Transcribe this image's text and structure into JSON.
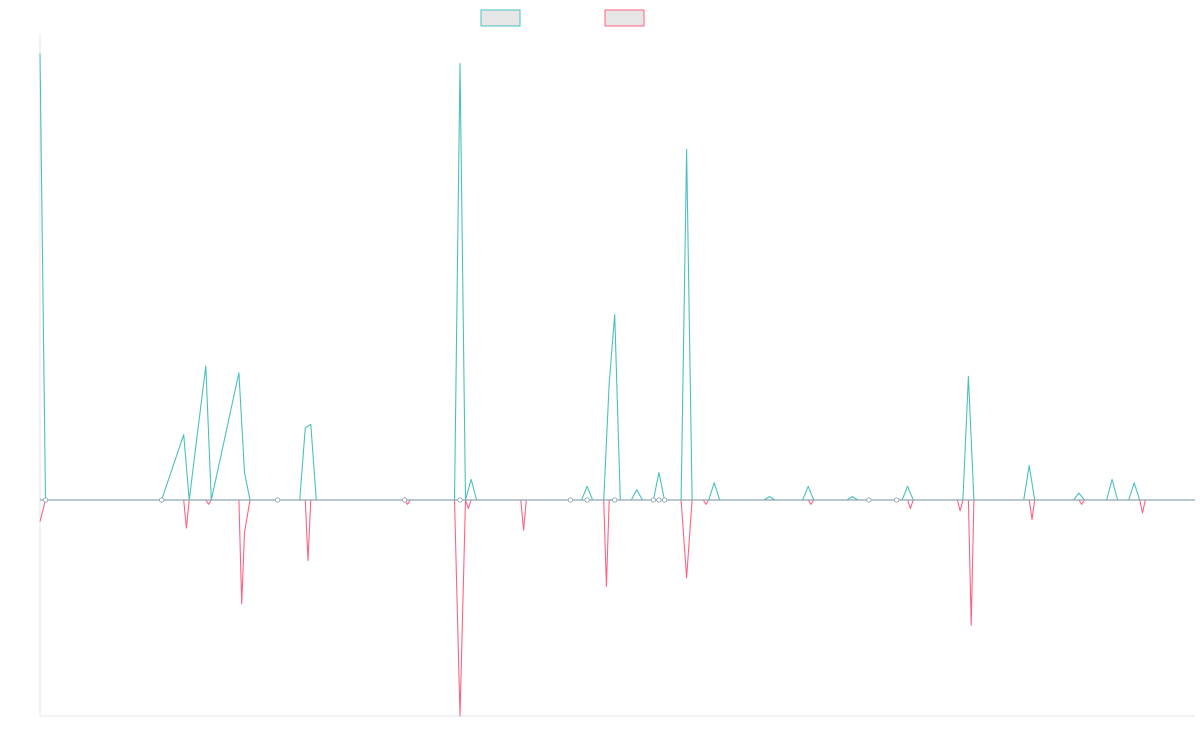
{
  "chart_data": {
    "type": "line",
    "title": "",
    "xlabel": "",
    "ylabel": "",
    "grid": false,
    "legend": "top-center",
    "x_count": 210,
    "ylim": [
      -1,
      1.35
    ],
    "series": [
      {
        "color": "#4bc0c0",
        "fill": "#e6e6e6",
        "points": [
          [
            0,
            1.3
          ],
          [
            1,
            0
          ],
          [
            22,
            0
          ],
          [
            26,
            0.19
          ],
          [
            27,
            0
          ],
          [
            30,
            0.39
          ],
          [
            31,
            0
          ],
          [
            36,
            0.37
          ],
          [
            37,
            0.08
          ],
          [
            38,
            0
          ],
          [
            47,
            0
          ],
          [
            48,
            0.21
          ],
          [
            49,
            0.22
          ],
          [
            50,
            0
          ],
          [
            75,
            0
          ],
          [
            76,
            1.27
          ],
          [
            77,
            0
          ],
          [
            78,
            0.06
          ],
          [
            79,
            0
          ],
          [
            98,
            0
          ],
          [
            99,
            0.04
          ],
          [
            100,
            0
          ],
          [
            102,
            0
          ],
          [
            103,
            0.34
          ],
          [
            104,
            0.54
          ],
          [
            105,
            0
          ],
          [
            107,
            0
          ],
          [
            108,
            0.03
          ],
          [
            109,
            0
          ],
          [
            111,
            0
          ],
          [
            112,
            0.08
          ],
          [
            113,
            0
          ],
          [
            116,
            0
          ],
          [
            117,
            1.02
          ],
          [
            118,
            0
          ],
          [
            121,
            0
          ],
          [
            122,
            0.05
          ],
          [
            123,
            0
          ],
          [
            131,
            0
          ],
          [
            132,
            0.01
          ],
          [
            133,
            0
          ],
          [
            138,
            0
          ],
          [
            139,
            0.04
          ],
          [
            140,
            0
          ],
          [
            146,
            0
          ],
          [
            147,
            0.01
          ],
          [
            148,
            0
          ],
          [
            156,
            0
          ],
          [
            157,
            0.04
          ],
          [
            158,
            0
          ],
          [
            167,
            0
          ],
          [
            168,
            0.36
          ],
          [
            169,
            0
          ],
          [
            178,
            0
          ],
          [
            179,
            0.1
          ],
          [
            180,
            0
          ],
          [
            187,
            0
          ],
          [
            188,
            0.02
          ],
          [
            189,
            0
          ],
          [
            193,
            0
          ],
          [
            194,
            0.06
          ],
          [
            195,
            0
          ],
          [
            197,
            0
          ],
          [
            198,
            0.05
          ],
          [
            199,
            0
          ],
          [
            209,
            0
          ]
        ]
      },
      {
        "color": "#ff6384",
        "fill": "#e6e6e6",
        "points": [
          [
            0,
            -0.1
          ],
          [
            1,
            0
          ],
          [
            26,
            0
          ],
          [
            26.5,
            -0.13
          ],
          [
            27,
            0
          ],
          [
            30,
            0
          ],
          [
            30.5,
            -0.02
          ],
          [
            31,
            0
          ],
          [
            36,
            0
          ],
          [
            36.5,
            -0.48
          ],
          [
            37,
            -0.15
          ],
          [
            38,
            0
          ],
          [
            48,
            0
          ],
          [
            48.5,
            -0.28
          ],
          [
            49,
            0
          ],
          [
            66,
            0
          ],
          [
            66.5,
            -0.02
          ],
          [
            67,
            0
          ],
          [
            75,
            0
          ],
          [
            76,
            -1.0
          ],
          [
            77,
            0
          ],
          [
            77.5,
            -0.04
          ],
          [
            78,
            0
          ],
          [
            87,
            0
          ],
          [
            87.5,
            -0.14
          ],
          [
            88,
            0
          ],
          [
            102,
            0
          ],
          [
            102.5,
            -0.4
          ],
          [
            103,
            0
          ],
          [
            116,
            0
          ],
          [
            117,
            -0.36
          ],
          [
            118,
            0
          ],
          [
            120,
            0
          ],
          [
            120.5,
            -0.02
          ],
          [
            121,
            0
          ],
          [
            139,
            0
          ],
          [
            139.5,
            -0.02
          ],
          [
            140,
            0
          ],
          [
            157,
            0
          ],
          [
            157.5,
            -0.04
          ],
          [
            158,
            0
          ],
          [
            166,
            0
          ],
          [
            166.5,
            -0.05
          ],
          [
            167,
            0
          ],
          [
            168,
            0
          ],
          [
            168.5,
            -0.58
          ],
          [
            169,
            0
          ],
          [
            179,
            0
          ],
          [
            179.5,
            -0.09
          ],
          [
            180,
            0
          ],
          [
            188,
            0
          ],
          [
            188.5,
            -0.02
          ],
          [
            189,
            0
          ],
          [
            199,
            0
          ],
          [
            199.5,
            -0.06
          ],
          [
            200,
            0
          ],
          [
            209,
            0
          ]
        ]
      }
    ],
    "markers": [
      [
        1,
        0
      ],
      [
        22,
        0
      ],
      [
        43,
        0
      ],
      [
        66,
        0
      ],
      [
        76,
        0
      ],
      [
        96,
        0
      ],
      [
        99,
        0
      ],
      [
        104,
        0
      ],
      [
        111,
        0
      ],
      [
        112,
        0
      ],
      [
        113,
        0
      ],
      [
        150,
        0
      ],
      [
        155,
        0
      ]
    ]
  }
}
